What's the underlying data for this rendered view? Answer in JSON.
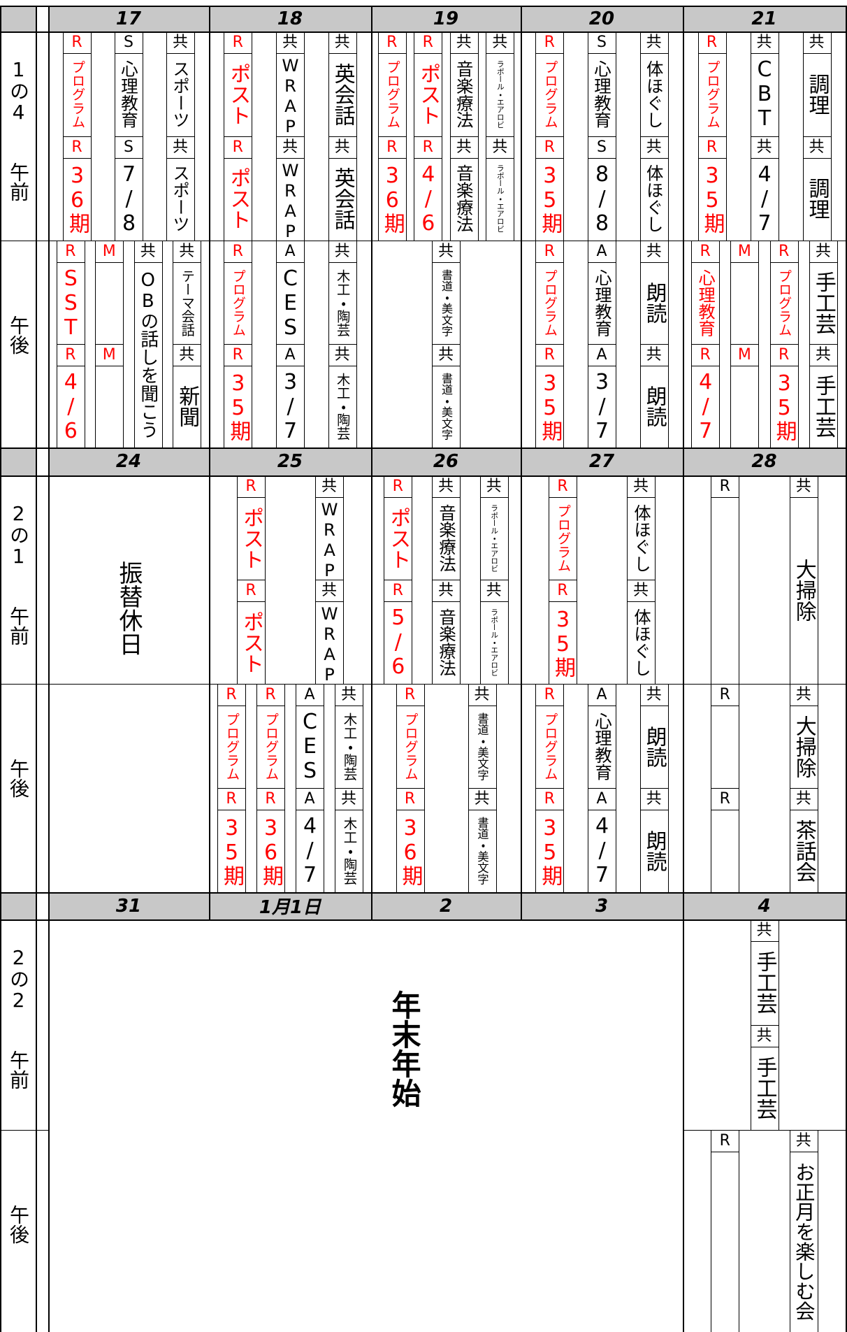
{
  "weeks": [
    {
      "label": "1の4",
      "am_label": "午前",
      "pm_label": "午後",
      "days": [
        {
          "date": "17",
          "am": [
            [
              {
                "tag": "R",
                "text": "プログラム",
                "color": "#ff0000"
              },
              {
                "tag": "R",
                "text": "36期",
                "color": "#ff0000"
              }
            ],
            [
              {
                "tag": "S",
                "text": "心理教育"
              },
              {
                "tag": "S",
                "text": "7/8"
              }
            ],
            [
              {
                "tag": "共",
                "text": "スポーツ"
              },
              {
                "tag": "共",
                "text": "スポーツ"
              }
            ]
          ],
          "pm": [
            [
              {
                "tag": "R",
                "text": "SST",
                "color": "#ff0000"
              },
              {
                "tag": "R",
                "text": "4/6",
                "color": "#ff0000"
              }
            ],
            [
              {
                "tag": "M",
                "color": "#ff0000"
              },
              {
                "tag": "M",
                "color": "#ff0000"
              }
            ],
            [
              {
                "tag": "共",
                "text": "OBの話しを聞こう"
              }
            ],
            [
              {
                "tag": "共",
                "text": "テーマ会話"
              },
              {
                "tag": "共",
                "text": "新聞"
              }
            ]
          ]
        },
        {
          "date": "18",
          "am": [
            [
              {
                "tag": "R",
                "text": "ポスト",
                "color": "#ff0000"
              },
              {
                "tag": "R",
                "text": "ポスト",
                "color": "#ff0000"
              }
            ],
            [
              {
                "tag": "共",
                "text": "WRAP"
              },
              {
                "tag": "共",
                "text": "WRAP"
              }
            ],
            [
              {
                "tag": "共",
                "text": "英会話"
              },
              {
                "tag": "共",
                "text": "英会話"
              }
            ]
          ],
          "pm": [
            [
              {
                "tag": "R",
                "text": "プログラム",
                "color": "#ff0000"
              },
              {
                "tag": "R",
                "text": "35期",
                "color": "#ff0000"
              }
            ],
            [
              {
                "tag": "A",
                "text": "CES"
              },
              {
                "tag": "A",
                "text": "3/7"
              }
            ],
            [
              {
                "tag": "共",
                "text": "木工・陶芸"
              },
              {
                "tag": "共",
                "text": "木工・陶芸"
              }
            ]
          ]
        },
        {
          "date": "19",
          "am": [
            [
              {
                "tag": "R",
                "text": "プログラム",
                "color": "#ff0000"
              },
              {
                "tag": "R",
                "text": "36期",
                "color": "#ff0000"
              }
            ],
            [
              {
                "tag": "R",
                "text": "ポスト",
                "color": "#ff0000"
              },
              {
                "tag": "R",
                "text": "4/6",
                "color": "#ff0000"
              }
            ],
            [
              {
                "tag": "共",
                "text": "音楽療法"
              },
              {
                "tag": "共",
                "text": "音楽療法"
              }
            ],
            [
              {
                "tag": "共",
                "text": "ラポール・エアロビ"
              },
              {
                "tag": "共",
                "text": "ラポール・エアロビ"
              }
            ]
          ],
          "pm": [
            [
              {
                "tag": "共",
                "text": "書道・美文字"
              },
              {
                "tag": "共",
                "text": "書道・美文字"
              }
            ]
          ]
        },
        {
          "date": "20",
          "am": [
            [
              {
                "tag": "R",
                "text": "プログラム",
                "color": "#ff0000"
              },
              {
                "tag": "R",
                "text": "35期",
                "color": "#ff0000"
              }
            ],
            [
              {
                "tag": "S",
                "text": "心理教育"
              },
              {
                "tag": "S",
                "text": "8/8"
              }
            ],
            [
              {
                "tag": "共",
                "text": "体ほぐし"
              },
              {
                "tag": "共",
                "text": "体ほぐし"
              }
            ]
          ],
          "pm": [
            [
              {
                "tag": "R",
                "text": "プログラム",
                "color": "#ff0000"
              },
              {
                "tag": "R",
                "text": "35期",
                "color": "#ff0000"
              }
            ],
            [
              {
                "tag": "A",
                "text": "心理教育"
              },
              {
                "tag": "A",
                "text": "3/7"
              }
            ],
            [
              {
                "tag": "共",
                "text": "朗読"
              },
              {
                "tag": "共",
                "text": "朗読"
              }
            ]
          ]
        },
        {
          "date": "21",
          "am": [
            [
              {
                "tag": "R",
                "text": "プログラム",
                "color": "#ff0000"
              },
              {
                "tag": "R",
                "text": "35期",
                "color": "#ff0000"
              }
            ],
            [
              {
                "tag": "共",
                "text": "CBT"
              },
              {
                "tag": "共",
                "text": "4/7"
              }
            ],
            [
              {
                "tag": "共",
                "text": "調理"
              },
              {
                "tag": "共",
                "text": "調理"
              }
            ]
          ],
          "pm": [
            [
              {
                "tag": "R",
                "text": "心理教育",
                "color": "#ff0000"
              },
              {
                "tag": "R",
                "text": "4/7",
                "color": "#ff0000"
              }
            ],
            [
              {
                "tag": "M",
                "color": "#ff0000"
              },
              {
                "tag": "M",
                "color": "#ff0000"
              }
            ],
            [
              {
                "tag": "R",
                "text": "プログラム",
                "color": "#ff0000"
              },
              {
                "tag": "R",
                "text": "35期",
                "color": "#ff0000"
              }
            ],
            [
              {
                "tag": "共",
                "text": "手工芸"
              },
              {
                "tag": "共",
                "text": "手工芸"
              }
            ]
          ]
        }
      ]
    },
    {
      "label": "2の1",
      "am_label": "午前",
      "pm_label": "午後",
      "days": [
        {
          "date": "24",
          "note": "振替休日"
        },
        {
          "date": "25",
          "am": [
            [
              {
                "tag": "R",
                "text": "ポスト",
                "color": "#ff0000"
              },
              {
                "tag": "R",
                "text": "ポスト",
                "color": "#ff0000"
              }
            ],
            [
              {
                "tag": "共",
                "text": "WRAP"
              },
              {
                "tag": "共",
                "text": "WRAP"
              }
            ]
          ],
          "pm": [
            [
              {
                "tag": "R",
                "text": "プログラム",
                "color": "#ff0000"
              },
              {
                "tag": "R",
                "text": "35期",
                "color": "#ff0000"
              }
            ],
            [
              {
                "tag": "R",
                "text": "プログラム",
                "color": "#ff0000"
              },
              {
                "tag": "R",
                "text": "36期",
                "color": "#ff0000"
              }
            ],
            [
              {
                "tag": "A",
                "text": "CES"
              },
              {
                "tag": "A",
                "text": "4/7"
              }
            ],
            [
              {
                "tag": "共",
                "text": "木工・陶芸"
              },
              {
                "tag": "共",
                "text": "木工・陶芸"
              }
            ]
          ]
        },
        {
          "date": "26",
          "am": [
            [
              {
                "tag": "R",
                "text": "ポスト",
                "color": "#ff0000"
              },
              {
                "tag": "R",
                "text": "5/6",
                "color": "#ff0000"
              }
            ],
            [
              {
                "tag": "共",
                "text": "音楽療法"
              },
              {
                "tag": "共",
                "text": "音楽療法"
              }
            ],
            [
              {
                "tag": "共",
                "text": "ラポール・エアロビ"
              },
              {
                "tag": "共",
                "text": "ラポール・エアロビ"
              }
            ]
          ],
          "pm": [
            [
              {
                "tag": "R",
                "text": "プログラム",
                "color": "#ff0000"
              },
              {
                "tag": "R",
                "text": "36期",
                "color": "#ff0000"
              }
            ],
            [
              {
                "tag": "共",
                "text": "書道・美文字"
              },
              {
                "tag": "共",
                "text": "書道・美文字"
              }
            ]
          ]
        },
        {
          "date": "27",
          "am": [
            [
              {
                "tag": "R",
                "text": "プログラム",
                "color": "#ff0000"
              },
              {
                "tag": "R",
                "text": "35期",
                "color": "#ff0000"
              }
            ],
            [
              {
                "tag": "共",
                "text": "体ほぐし"
              },
              {
                "tag": "共",
                "text": "体ほぐし"
              }
            ]
          ],
          "pm": [
            [
              {
                "tag": "R",
                "text": "プログラム",
                "color": "#ff0000"
              },
              {
                "tag": "R",
                "text": "35期",
                "color": "#ff0000"
              }
            ],
            [
              {
                "tag": "A",
                "text": "心理教育"
              },
              {
                "tag": "A",
                "text": "4/7"
              }
            ],
            [
              {
                "tag": "共",
                "text": "朗読"
              },
              {
                "tag": "共",
                "text": "朗読"
              }
            ]
          ]
        },
        {
          "date": "28",
          "am": [
            [
              {
                "tag": "R"
              }
            ],
            [
              {
                "tag": "共",
                "text": "大掃除"
              }
            ]
          ],
          "pm": [
            [
              {
                "tag": "R"
              },
              {
                "tag": "R"
              }
            ],
            [
              {
                "tag": "共",
                "text": "大掃除"
              },
              {
                "tag": "共",
                "text": "茶話会"
              }
            ]
          ]
        }
      ]
    },
    {
      "label": "2の2",
      "am_label": "午前",
      "pm_label": "午後",
      "note": "年末年始",
      "days": [
        {
          "date": "31"
        },
        {
          "date": "1月1日"
        },
        {
          "date": "2"
        },
        {
          "date": "3"
        },
        {
          "date": "4",
          "am": [
            [
              {
                "tag": "共",
                "text": "手工芸"
              },
              {
                "tag": "共",
                "text": "手工芸"
              }
            ]
          ],
          "pm": [
            [
              {
                "tag": "R"
              }
            ],
            [
              {
                "tag": "共",
                "text": "お正月を楽しむ会"
              }
            ]
          ]
        }
      ]
    }
  ]
}
